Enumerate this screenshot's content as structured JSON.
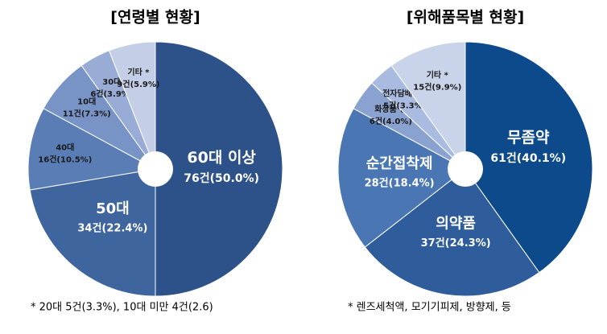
{
  "chart_data": [
    {
      "type": "pie",
      "title": "[연령별 현황]",
      "categories": [
        "60대 이상",
        "50대",
        "40대",
        "10대",
        "30대",
        "기타 *"
      ],
      "values": [
        76,
        34,
        16,
        11,
        6,
        9
      ],
      "value_labels": [
        "76건(50.0%)",
        "34건(22.4%)",
        "16건(10.5%)",
        "11건(7.3%)",
        "6건(3.9%)",
        "9건(5.9%)"
      ],
      "colors": [
        "#2d5289",
        "#3e659d",
        "#5a7db6",
        "#7893c6",
        "#98acd6",
        "#c4cee6"
      ],
      "note": "* 20대 5건(3.3%), 10대 미만 4건(2.6)"
    },
    {
      "type": "pie",
      "title": "[위해품목별 현황]",
      "categories": [
        "무좀약",
        "의약품",
        "순간접착제",
        "화장품 등",
        "전자담배액상",
        "기타 *"
      ],
      "values": [
        61,
        37,
        28,
        6,
        5,
        15
      ],
      "value_labels": [
        "61건(40.1%)",
        "37건(24.3%)",
        "28건(18.4%)",
        "6건(4.0%)",
        "5건(3.3%)",
        "15건(9.9%)"
      ],
      "colors": [
        "#0d4a8b",
        "#2f5d9b",
        "#4a77b4",
        "#8aa2cf",
        "#a9bbe0",
        "#c9d3ea"
      ],
      "note": "* 렌즈세척액, 모기기피제, 방향제, 등"
    }
  ]
}
